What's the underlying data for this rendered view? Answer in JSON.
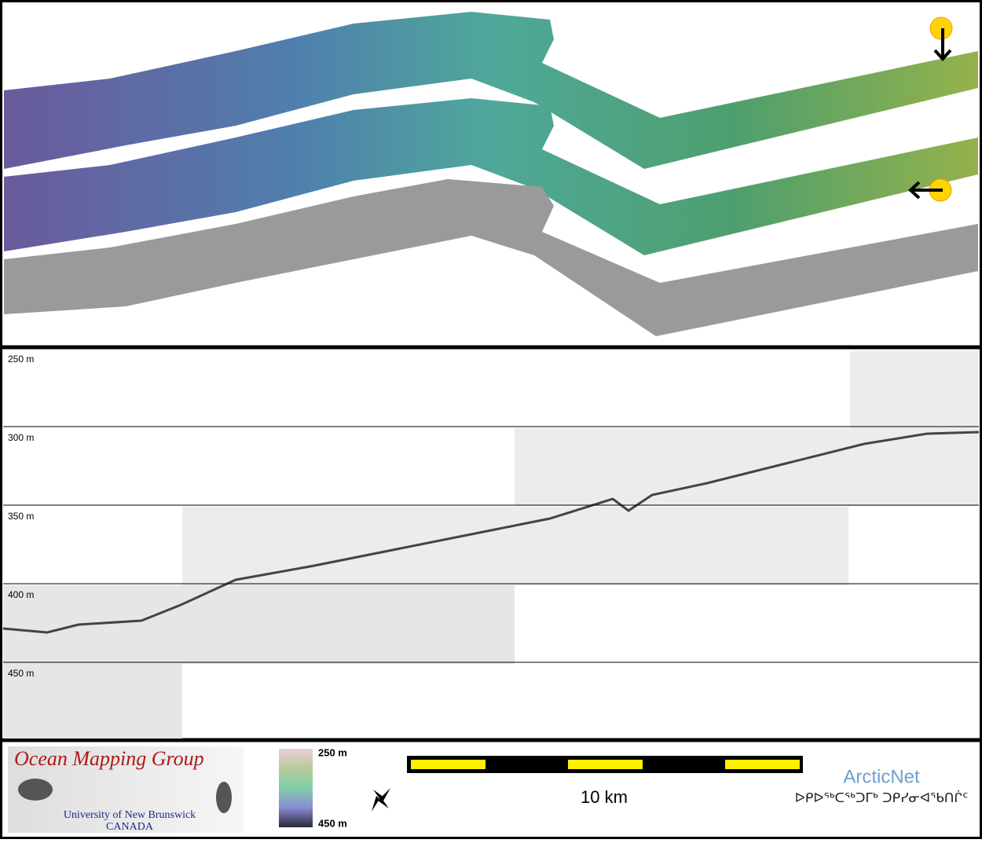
{
  "depth_labels": [
    "250 m",
    "300 m",
    "350 m",
    "400 m",
    "450 m"
  ],
  "logo": {
    "title": "Ocean Mapping Group",
    "university": "University of New Brunswick",
    "country": "CANADA"
  },
  "color_bar": {
    "top": "250 m",
    "bottom": "450 m"
  },
  "scale_bar": {
    "label": "10 km"
  },
  "partner": {
    "name": "ArcticNet",
    "syllabics": "ᐅᑭᐅᖅᑕᖅᑐᒥᒃ ᑐᑭᓯᓂᐊᖃᑎᒌᑦ"
  }
}
